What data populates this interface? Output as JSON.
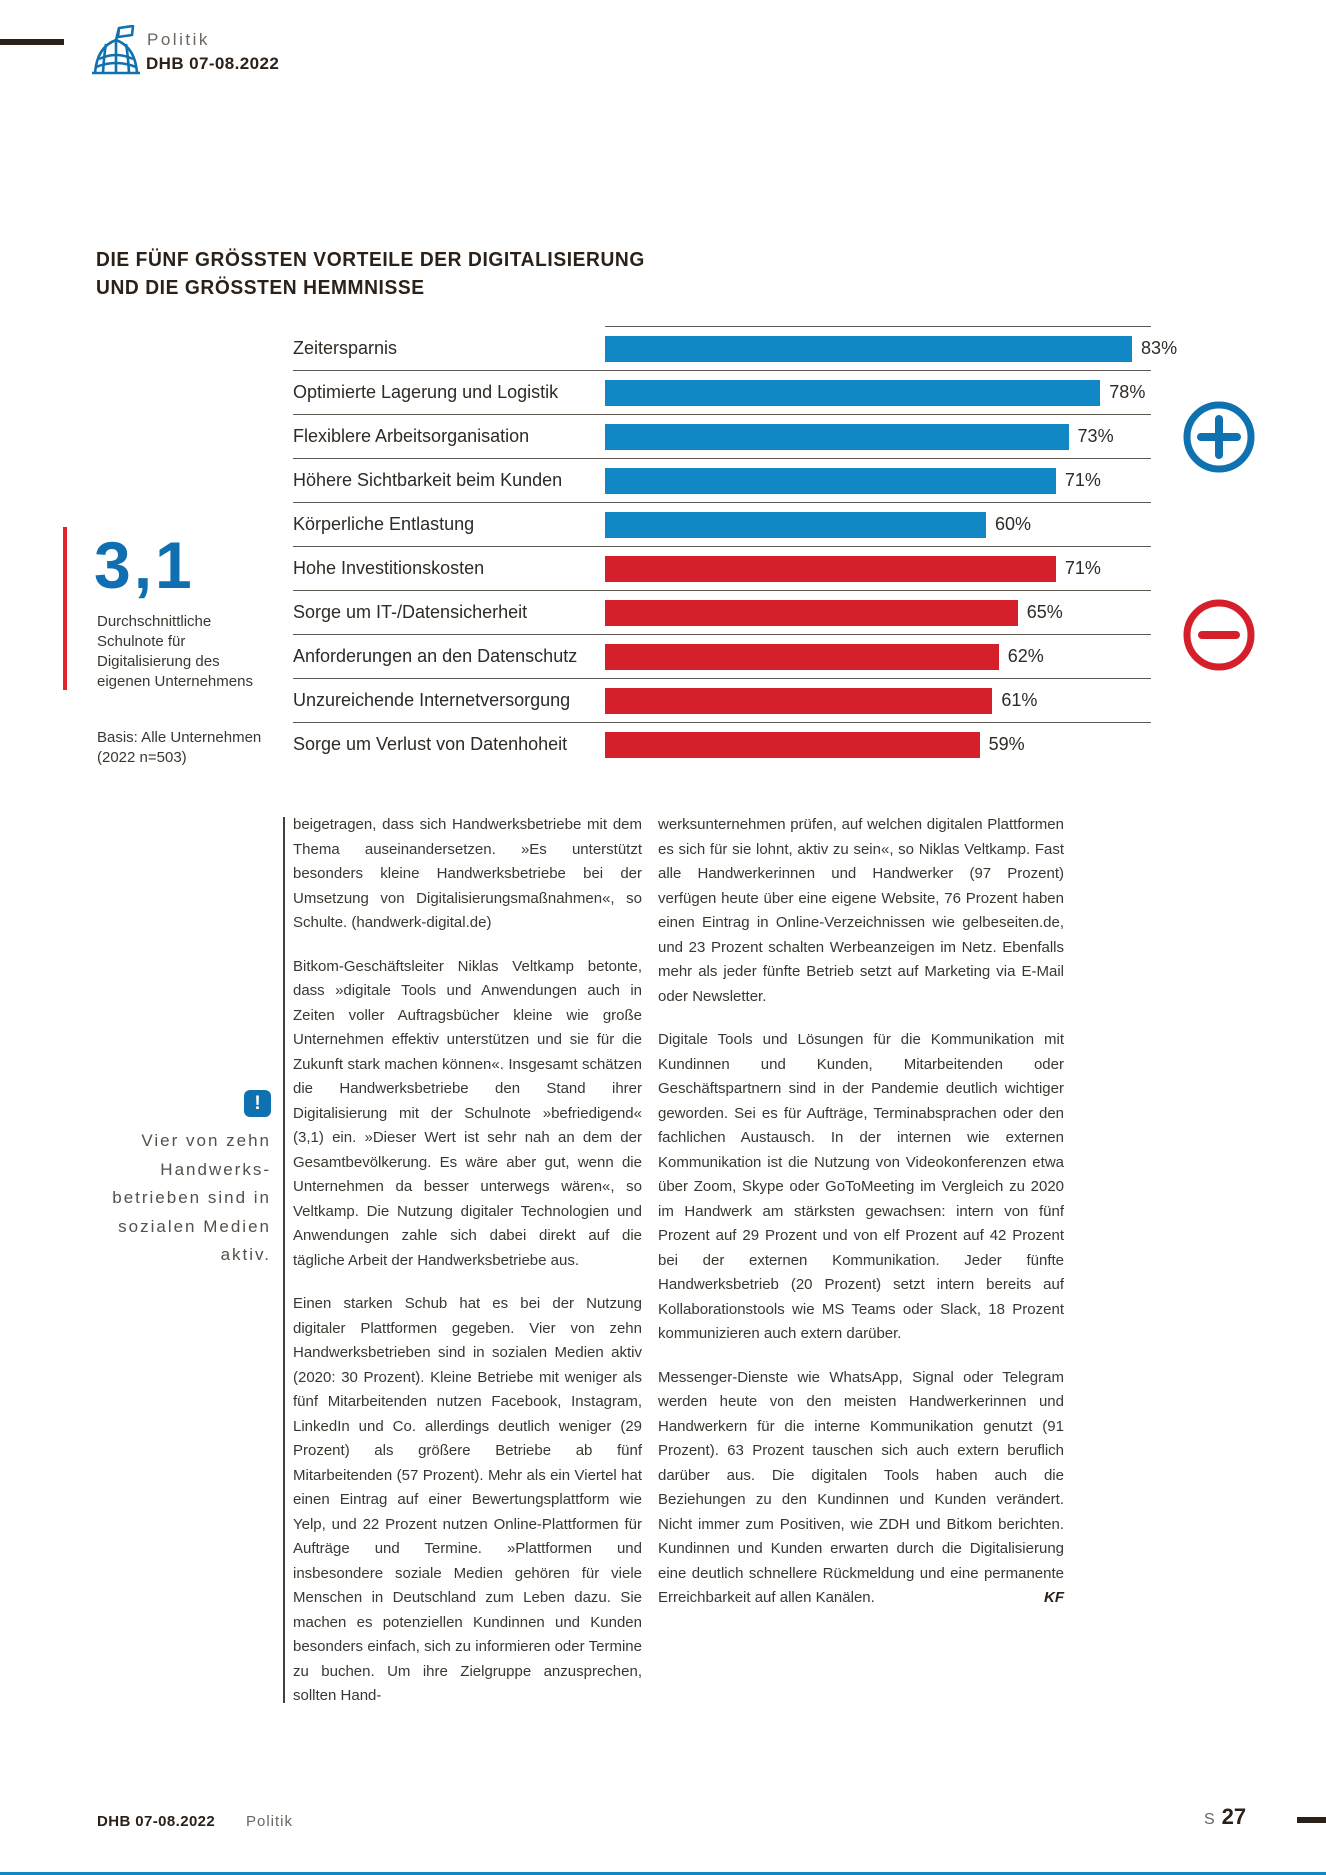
{
  "header": {
    "section": "Politik",
    "issue": "DHB 07-08.2022"
  },
  "chart": {
    "title_line1": "DIE FÜNF GRÖSSTEN VORTEILE DER DIGITALISIERUNG",
    "title_line2": "UND DIE GRÖSSTEN HEMMNISSE"
  },
  "chart_data": {
    "type": "bar",
    "orientation": "horizontal",
    "title": "Die fünf größten Vorteile der Digitalisierung und die größten Hemmnisse",
    "value_unit": "%",
    "xlim": [
      0,
      100
    ],
    "grid": false,
    "groups": {
      "advantage": {
        "color": "#1187c5",
        "symbol": "plus-circle"
      },
      "obstacle": {
        "color": "#d5202c",
        "symbol": "minus-circle"
      }
    },
    "rows": [
      {
        "label": "Zeitersparnis",
        "value": 83,
        "group": "advantage"
      },
      {
        "label": "Optimierte Lagerung und Logistik",
        "value": 78,
        "group": "advantage"
      },
      {
        "label": "Flexiblere Arbeitsorganisation",
        "value": 73,
        "group": "advantage"
      },
      {
        "label": "Höhere Sichtbarkeit beim Kunden",
        "value": 71,
        "group": "advantage"
      },
      {
        "label": "Körperliche Entlastung",
        "value": 60,
        "group": "advantage"
      },
      {
        "label": "Hohe Investitionskosten",
        "value": 71,
        "group": "obstacle"
      },
      {
        "label": "Sorge um IT-/Datensicherheit",
        "value": 65,
        "group": "obstacle"
      },
      {
        "label": "Anforderungen an den Datenschutz",
        "value": 62,
        "group": "obstacle"
      },
      {
        "label": "Unzureichende Internetversorgung",
        "value": 61,
        "group": "obstacle"
      },
      {
        "label": "Sorge um Verlust von Datenhoheit",
        "value": 59,
        "group": "obstacle"
      }
    ]
  },
  "stat_callout": {
    "value": "3,1",
    "caption": "Durchschnittliche Schulnote für Digitalisierung des eigenen Unternehmens",
    "basis": "Basis: Alle Unternehmen (2022 n=503)"
  },
  "pull_quote": {
    "exclamation_mark": "!",
    "lines": [
      "Vier von zehn",
      "Handwerks-",
      "betrieben sind in",
      "sozialen Medien",
      "aktiv."
    ]
  },
  "article": {
    "column1": [
      "beigetragen, dass sich Handwerksbetriebe mit dem Thema auseinandersetzen. »Es unterstützt besonders kleine Handwerksbetriebe bei der Umsetzung von Digitalisierungsmaßnahmen«, so Schulte. (handwerk-digital.de)",
      "Bitkom-Geschäftsleiter Niklas Veltkamp betonte, dass »digitale Tools und Anwendungen auch in Zeiten voller Auftragsbücher kleine wie große Unternehmen effektiv unterstützen und sie für die Zukunft stark machen können«. Insgesamt schätzen die Handwerksbetriebe den Stand ihrer Digitalisierung mit der Schulnote »befriedigend« (3,1) ein. »Dieser Wert ist sehr nah an dem der Gesamtbevölkerung. Es wäre aber gut, wenn die Unternehmen da besser unterwegs wären«, so Veltkamp. Die Nutzung digitaler Technologien und Anwendungen zahle sich dabei direkt auf die tägliche Arbeit der Handwerksbetriebe aus.",
      "Einen starken Schub hat es bei der Nutzung digitaler Plattformen gegeben. Vier von zehn Handwerksbetrieben sind in sozialen Medien aktiv (2020: 30 Prozent). Kleine Betriebe mit weniger als fünf Mitarbeitenden nutzen Facebook, Instagram, LinkedIn und Co. allerdings deutlich weniger (29 Prozent) als größere Betriebe ab fünf Mitarbeitenden (57 Prozent). Mehr als ein Viertel hat einen Eintrag auf einer Bewertungsplattform wie Yelp, und 22 Prozent nutzen Online-Plattformen für Aufträge und Termine. »Plattformen und insbesondere soziale Medien gehören für viele Menschen in Deutschland zum Leben dazu. Sie machen es potenziellen Kundinnen und Kunden besonders einfach, sich zu informieren oder Termine zu buchen. Um ihre Zielgruppe anzusprechen, sollten Hand-"
    ],
    "column2": [
      "werksunternehmen prüfen, auf welchen digitalen Plattformen es sich für sie lohnt, aktiv zu sein«, so Niklas Veltkamp. Fast alle Handwerkerinnen und Handwerker (97 Prozent) verfügen heute über eine eigene Website, 76 Prozent haben einen Eintrag in Online-Verzeichnissen wie gelbeseiten.de, und 23 Prozent schalten Werbeanzeigen im Netz. Ebenfalls mehr als jeder fünfte Betrieb setzt auf Marketing via E-Mail oder Newsletter.",
      "Digitale Tools und Lösungen für die Kommunikation mit Kundinnen und Kunden, Mitarbeitenden oder Geschäftspartnern sind in der Pandemie deutlich wichtiger geworden. Sei es für Aufträge, Terminabsprachen oder den fachlichen Austausch. In der internen wie externen Kommunikation ist die Nutzung von Videokonferenzen etwa über Zoom, Skype oder GoToMeeting im Vergleich zu 2020 im Handwerk am stärksten gewachsen: intern von fünf Prozent auf 29 Prozent und von elf Prozent auf 42 Prozent bei der externen Kommunikation. Jeder fünfte Handwerksbetrieb (20 Prozent) setzt intern bereits auf Kollaborationstools wie MS Teams oder Slack, 18 Prozent kommunizieren auch extern darüber.",
      "Messenger-Dienste wie WhatsApp, Signal oder Telegram werden heute von den meisten Handwerkerinnen und Handwerkern für die interne Kommunikation genutzt (91 Prozent). 63 Prozent tauschen sich auch extern beruflich darüber aus. Die digitalen Tools haben auch die Beziehungen zu den Kundinnen und Kunden verändert. Nicht immer zum Positiven, wie ZDH und Bitkom berichten. Kundinnen und Kunden erwarten durch die Digitalisierung eine deutlich schnellere Rückmeldung und eine permanente Erreichbarkeit auf allen Kanälen."
    ],
    "author_initials": "KF"
  },
  "footer": {
    "issue": "DHB 07-08.2022",
    "section": "Politik",
    "page_prefix": "S",
    "page_number": "27"
  },
  "colors": {
    "accent_blue": "#0f72b0",
    "bar_blue": "#1187c5",
    "bar_red": "#d5202c",
    "callout_red": "#e0242b"
  }
}
